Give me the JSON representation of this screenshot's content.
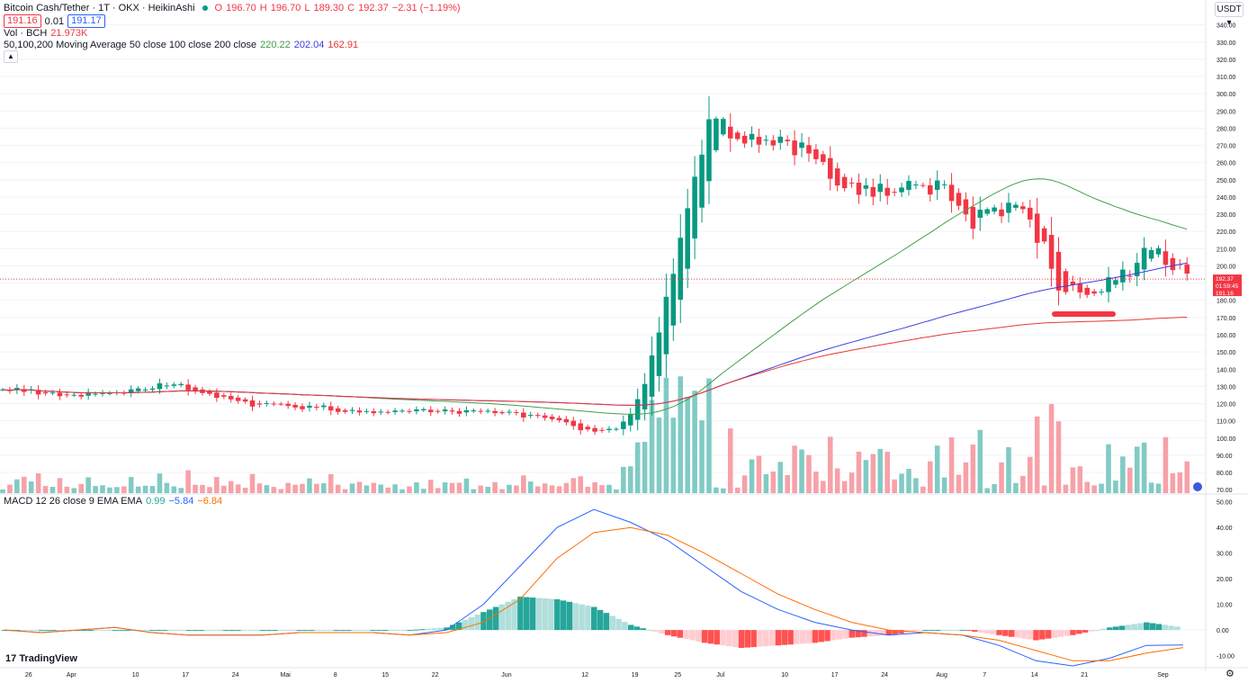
{
  "header": {
    "symbol": "Bitcoin Cash/Tether · 1T · OKX · HeikinAshi",
    "open_label": "O",
    "open": "196.70",
    "high_label": "H",
    "high": "196.70",
    "low_label": "L",
    "low": "189.30",
    "close_label": "C",
    "close": "192.37",
    "change": "−2.31 (−1.19%)",
    "bid": "191.16",
    "spread": "0.01",
    "ask": "191.17"
  },
  "volume_legend": {
    "label": "Vol · BCH",
    "value": "21.973K"
  },
  "ma_legend": {
    "label": "50,100,200 Moving Average 50 close 100 close 200 close",
    "ma50": "220.22",
    "ma100": "202.04",
    "ma200": "162.91"
  },
  "macd_legend": {
    "label": "MACD 12 26 close 9 EMA EMA",
    "hist": "0.99",
    "macd": "−5.84",
    "signal": "−6.84"
  },
  "currency": "USDT",
  "brand": "TradingView",
  "price_tags": {
    "last": "192.37",
    "countdown": "01:59:45",
    "bid": "191.16"
  },
  "colors": {
    "up": "#089981",
    "down": "#f23645",
    "ma50": "#43a047",
    "ma100": "#3f3fe0",
    "ma200": "#e53935",
    "macd": "#2962ff",
    "signal": "#ff6d00",
    "marker": "#f23645"
  },
  "chart_data": [
    {
      "type": "candlestick",
      "title": "Bitcoin Cash/Tether · 1T · OKX · HeikinAshi",
      "y_axis_ticks": [
        "340.00",
        "330.00",
        "320.00",
        "310.00",
        "300.00",
        "290.00",
        "280.00",
        "270.00",
        "260.00",
        "250.00",
        "240.00",
        "230.00",
        "220.00",
        "210.00",
        "200.00",
        "190.00",
        "180.00",
        "170.00",
        "160.00",
        "150.00",
        "140.00",
        "130.00",
        "120.00",
        "110.00",
        "100.00",
        "90.00",
        "80.00",
        "70.00"
      ],
      "x_axis_ticks": [
        "26",
        "Apr",
        "10",
        "17",
        "24",
        "Mai",
        "8",
        "15",
        "22",
        "Jun",
        "12",
        "19",
        "25",
        "Jul",
        "10",
        "17",
        "24",
        "Aug",
        "7",
        "14",
        "21",
        "Sep"
      ],
      "x_tick_dates": [
        "2023-03-26",
        "2023-04-01",
        "2023-04-10",
        "2023-04-17",
        "2023-04-24",
        "2023-05-01",
        "2023-05-08",
        "2023-05-15",
        "2023-05-22",
        "2023-06-01",
        "2023-06-12",
        "2023-06-19",
        "2023-06-25",
        "2023-07-01",
        "2023-07-10",
        "2023-07-17",
        "2023-07-24",
        "2023-08-01",
        "2023-08-07",
        "2023-08-14",
        "2023-08-21",
        "2023-09-01"
      ],
      "ylim": [
        68,
        344
      ],
      "candles_close_approx": [
        [
          "2023-03-25",
          128
        ],
        [
          "2023-04-01",
          124
        ],
        [
          "2023-04-08",
          127
        ],
        [
          "2023-04-15",
          132
        ],
        [
          "2023-04-20",
          125
        ],
        [
          "2023-04-27",
          119
        ],
        [
          "2023-05-05",
          118
        ],
        [
          "2023-05-12",
          115
        ],
        [
          "2023-05-19",
          117
        ],
        [
          "2023-05-26",
          115
        ],
        [
          "2023-06-02",
          114
        ],
        [
          "2023-06-09",
          110
        ],
        [
          "2023-06-13",
          103
        ],
        [
          "2023-06-17",
          107
        ],
        [
          "2023-06-20",
          125
        ],
        [
          "2023-06-22",
          160
        ],
        [
          "2023-06-24",
          185
        ],
        [
          "2023-06-26",
          225
        ],
        [
          "2023-06-29",
          280
        ],
        [
          "2023-07-01",
          285
        ],
        [
          "2023-07-04",
          270
        ],
        [
          "2023-07-08",
          275
        ],
        [
          "2023-07-12",
          268
        ],
        [
          "2023-07-16",
          255
        ],
        [
          "2023-07-20",
          245
        ],
        [
          "2023-07-25",
          245
        ],
        [
          "2023-08-01",
          245
        ],
        [
          "2023-08-05",
          225
        ],
        [
          "2023-08-08",
          235
        ],
        [
          "2023-08-12",
          230
        ],
        [
          "2023-08-15",
          215
        ],
        [
          "2023-08-17",
          185
        ],
        [
          "2023-08-20",
          186
        ],
        [
          "2023-08-24",
          188
        ],
        [
          "2023-08-28",
          200
        ],
        [
          "2023-08-30",
          215
        ],
        [
          "2023-09-02",
          200
        ],
        [
          "2023-09-05",
          192.37
        ]
      ],
      "moving_averages": [
        {
          "name": "MA 50",
          "last": 220.22
        },
        {
          "name": "MA 100",
          "last": 202.04
        },
        {
          "name": "MA 200",
          "last": 162.91
        }
      ],
      "volume": {
        "label": "Vol · BCH",
        "last": "21.973K"
      }
    },
    {
      "type": "line",
      "title": "MACD 12 26 close 9 EMA EMA",
      "y_axis_ticks": [
        "50.00",
        "40.00",
        "30.00",
        "20.00",
        "10.00",
        "0.00",
        "-10.00"
      ],
      "ylim": [
        -14,
        52
      ],
      "series": [
        {
          "name": "MACD",
          "values_approx": [
            0,
            -1,
            0,
            1,
            -1,
            -2,
            -2,
            -2,
            -1,
            -1,
            -1,
            -2,
            0,
            10,
            25,
            40,
            47,
            42,
            35,
            25,
            15,
            8,
            3,
            0,
            -2,
            -1,
            -2,
            -6,
            -12,
            -14,
            -11,
            -6,
            -5.84
          ]
        },
        {
          "name": "Signal",
          "values_approx": [
            0,
            -1,
            0,
            1,
            -1,
            -2,
            -2,
            -2,
            -1,
            -1,
            -1,
            -2,
            -1,
            3,
            12,
            28,
            38,
            40,
            37,
            30,
            22,
            14,
            8,
            3,
            0,
            -1,
            -2,
            -4,
            -8,
            -12,
            -12,
            -9,
            -6.84
          ]
        }
      ]
    }
  ]
}
